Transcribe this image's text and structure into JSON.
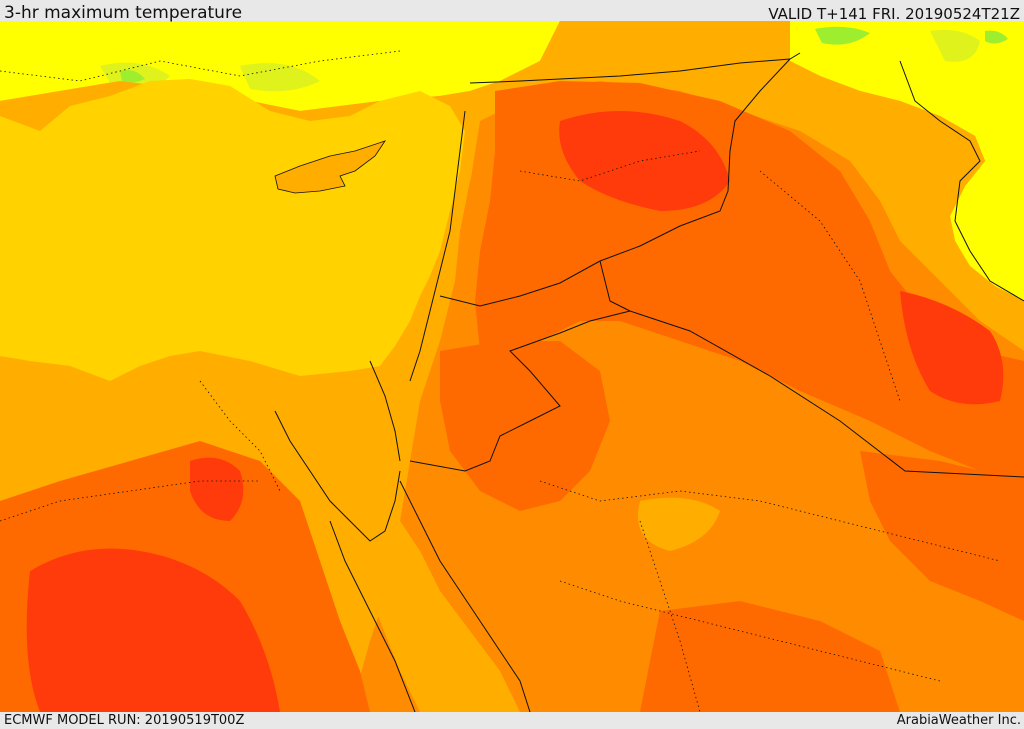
{
  "header": {
    "title": "3-hr maximum temperature",
    "valid": "VALID T+141 FRI. 20190524T21Z"
  },
  "footer": {
    "model_run": "ECMWF MODEL RUN: 20190519T00Z",
    "credit": "ArabiaWeather Inc."
  },
  "colors": {
    "background": "#e8e8e8",
    "sea": "#ffd200",
    "green": "#9dee2e",
    "yellow_green": "#dff21c",
    "yellow": "#ffff00",
    "amber": "#ffae00",
    "orange": "#ff8c00",
    "orange_red": "#ff6a00",
    "red": "#ff3b0c",
    "borders": "#111111"
  }
}
